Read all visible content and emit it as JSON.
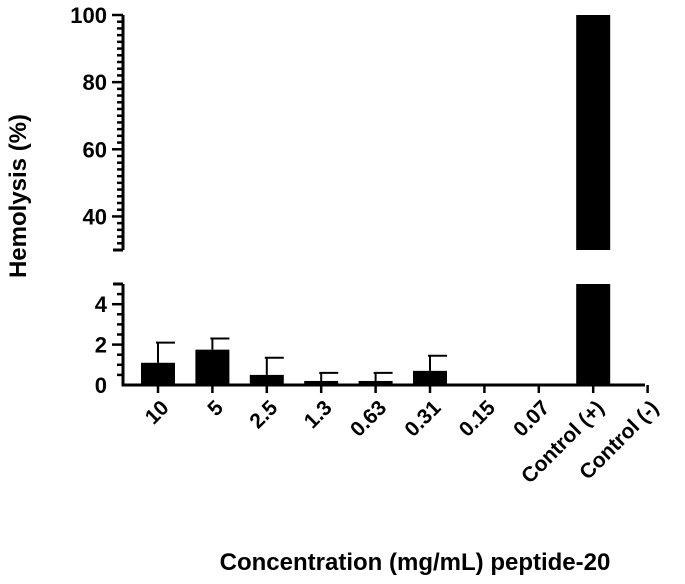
{
  "chart_data": {
    "type": "bar",
    "xlabel": "Concentration (mg/mL) peptide-20",
    "ylabel": "Hemolysis (%)",
    "categories": [
      "10",
      "5",
      "2.5",
      "1.3",
      "0.63",
      "0.31",
      "0.15",
      "0.07",
      "Control (+)",
      "Control (-)"
    ],
    "values": [
      1.1,
      1.75,
      0.5,
      0.2,
      0.2,
      0.7,
      0,
      0,
      100,
      0
    ],
    "error_up": [
      1.0,
      0.55,
      0.85,
      0.4,
      0.4,
      0.75,
      0,
      0,
      0,
      0
    ],
    "y_axis_break": true,
    "lower_segment": {
      "ylim": [
        0,
        5
      ],
      "tick_labels": [
        "0",
        "2",
        "4"
      ]
    },
    "upper_segment": {
      "ylim": [
        30,
        100
      ],
      "tick_labels": [
        "40",
        "60",
        "80",
        "100"
      ]
    },
    "grid": false,
    "legend": "none",
    "bar_color": "#000000"
  }
}
